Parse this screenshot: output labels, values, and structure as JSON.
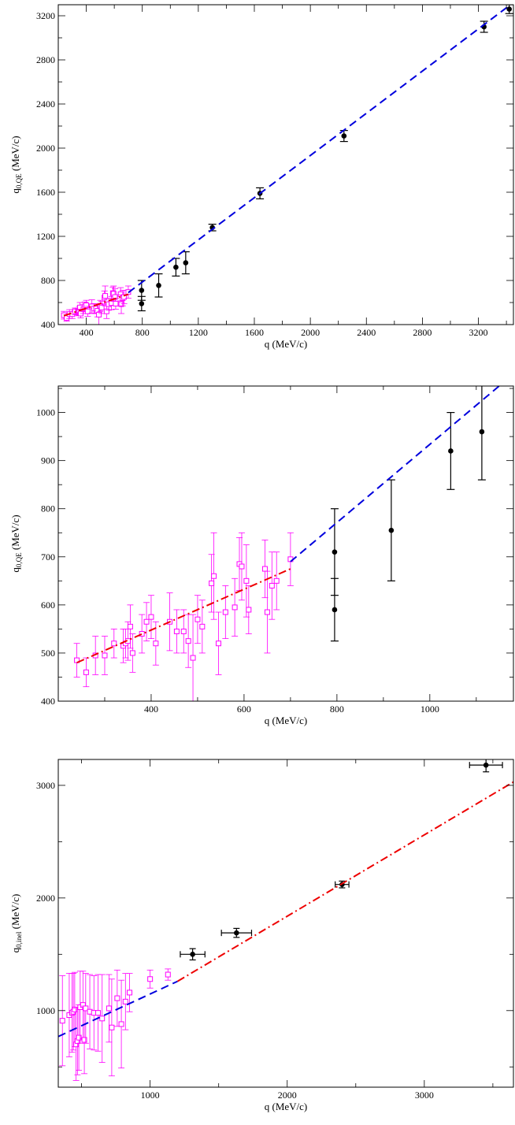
{
  "chart_data": [
    {
      "type": "scatter",
      "xlabel": "q (MeV/c)",
      "ylabel_main": "q",
      "ylabel_sub": "0,QE",
      "ylabel_unit": " (MeV/c)",
      "xlim": [
        200,
        3450
      ],
      "ylim": [
        400,
        3300
      ],
      "xticks": [
        400,
        800,
        1200,
        1600,
        2000,
        2400,
        2800,
        3200
      ],
      "yticks": [
        400,
        800,
        1200,
        1600,
        2000,
        2400,
        2800,
        3200
      ],
      "grid": false,
      "colors": {
        "black": "#000000",
        "magenta": "#ff00ff",
        "blue": "#0000dd",
        "red": "#ee0000"
      },
      "series": [
        {
          "style": "black-points",
          "points": [
            [
              795,
              710,
              90
            ],
            [
              795,
              590,
              65
            ],
            [
              917,
              755,
              105
            ],
            [
              1040,
              920,
              80
            ],
            [
              1110,
              960,
              100
            ],
            [
              1300,
              1280,
              30
            ],
            [
              1640,
              1590,
              50
            ],
            [
              2240,
              2110,
              50
            ],
            [
              3240,
              3100,
              50
            ],
            [
              3420,
              3260,
              40
            ]
          ]
        },
        {
          "style": "magenta-squares",
          "points": [
            [
              240,
              485,
              35
            ],
            [
              260,
              460,
              30
            ],
            [
              280,
              495,
              40
            ],
            [
              300,
              495,
              40
            ],
            [
              320,
              520,
              30
            ],
            [
              340,
              515,
              35
            ],
            [
              345,
              520,
              30
            ],
            [
              350,
              525,
              40
            ],
            [
              355,
              555,
              45
            ],
            [
              360,
              500,
              40
            ],
            [
              380,
              540,
              40
            ],
            [
              390,
              565,
              40
            ],
            [
              400,
              575,
              45
            ],
            [
              410,
              520,
              45
            ],
            [
              440,
              565,
              60
            ],
            [
              455,
              545,
              45
            ],
            [
              470,
              545,
              45
            ],
            [
              480,
              525,
              55
            ],
            [
              490,
              490,
              90
            ],
            [
              500,
              570,
              50
            ],
            [
              510,
              555,
              55
            ],
            [
              530,
              645,
              60
            ],
            [
              535,
              660,
              90
            ],
            [
              545,
              520,
              65
            ],
            [
              560,
              585,
              55
            ],
            [
              580,
              595,
              60
            ],
            [
              590,
              685,
              55
            ],
            [
              595,
              680,
              70
            ],
            [
              605,
              650,
              75
            ],
            [
              610,
              590,
              50
            ],
            [
              645,
              675,
              60
            ],
            [
              650,
              585,
              85
            ],
            [
              660,
              640,
              70
            ],
            [
              670,
              650,
              60
            ],
            [
              700,
              695,
              55
            ]
          ]
        },
        {
          "style": "blue-dashed",
          "line": [
            [
              700,
              690
            ],
            [
              3450,
              3320
            ]
          ]
        },
        {
          "style": "red-dashdot",
          "line": [
            [
              240,
              480
            ],
            [
              700,
              675
            ]
          ]
        }
      ]
    },
    {
      "type": "scatter",
      "xlabel": "q (MeV/c)",
      "ylabel_main": "q",
      "ylabel_sub": "0,QE",
      "ylabel_unit": " (MeV/c)",
      "xlim": [
        200,
        1180
      ],
      "ylim": [
        400,
        1055
      ],
      "xticks": [
        400,
        600,
        800,
        1000
      ],
      "yticks": [
        400,
        500,
        600,
        700,
        800,
        900,
        1000
      ],
      "grid": false,
      "series": [
        {
          "style": "black-points",
          "points": [
            [
              795,
              710,
              90
            ],
            [
              795,
              590,
              65
            ],
            [
              917,
              755,
              105
            ],
            [
              1045,
              920,
              80
            ],
            [
              1112,
              960,
              100
            ]
          ]
        },
        {
          "style": "magenta-squares",
          "points": [
            [
              240,
              485,
              35
            ],
            [
              260,
              460,
              30
            ],
            [
              280,
              495,
              40
            ],
            [
              300,
              495,
              40
            ],
            [
              320,
              520,
              30
            ],
            [
              340,
              515,
              35
            ],
            [
              345,
              520,
              30
            ],
            [
              350,
              525,
              40
            ],
            [
              355,
              555,
              45
            ],
            [
              360,
              500,
              40
            ],
            [
              380,
              540,
              40
            ],
            [
              390,
              565,
              40
            ],
            [
              400,
              575,
              45
            ],
            [
              410,
              520,
              45
            ],
            [
              440,
              565,
              60
            ],
            [
              455,
              545,
              45
            ],
            [
              470,
              545,
              45
            ],
            [
              480,
              525,
              55
            ],
            [
              490,
              490,
              90
            ],
            [
              500,
              570,
              50
            ],
            [
              510,
              555,
              55
            ],
            [
              530,
              645,
              60
            ],
            [
              535,
              660,
              90
            ],
            [
              545,
              520,
              65
            ],
            [
              560,
              585,
              55
            ],
            [
              580,
              595,
              60
            ],
            [
              590,
              685,
              55
            ],
            [
              595,
              680,
              70
            ],
            [
              605,
              650,
              75
            ],
            [
              610,
              590,
              50
            ],
            [
              645,
              675,
              60
            ],
            [
              650,
              585,
              85
            ],
            [
              660,
              640,
              70
            ],
            [
              670,
              650,
              60
            ],
            [
              700,
              695,
              55
            ]
          ]
        },
        {
          "style": "blue-dashed",
          "line": [
            [
              700,
              690
            ],
            [
              1180,
              1080
            ]
          ]
        },
        {
          "style": "red-dashdot",
          "line": [
            [
              240,
              480
            ],
            [
              700,
              675
            ]
          ]
        }
      ]
    },
    {
      "type": "scatter",
      "xlabel": "q (MeV/c)",
      "ylabel_main": "q",
      "ylabel_sub": "0,inel",
      "ylabel_unit": " (MeV/c)",
      "xlim": [
        330,
        3650
      ],
      "ylim": [
        320,
        3230
      ],
      "xticks": [
        1000,
        2000,
        3000
      ],
      "yticks": [
        1000,
        2000,
        3000
      ],
      "grid": false,
      "series": [
        {
          "style": "black-points-xerr",
          "points": [
            [
              1310,
              1500,
              90,
              50
            ],
            [
              1630,
              1690,
              110,
              40
            ],
            [
              2400,
              2120,
              50,
              30
            ],
            [
              3450,
              3180,
              120,
              60
            ]
          ]
        },
        {
          "style": "magenta-squares",
          "points": [
            [
              360,
              910,
              400
            ],
            [
              410,
              960,
              370
            ],
            [
              430,
              980,
              350
            ],
            [
              440,
              990,
              340
            ],
            [
              450,
              1010,
              330
            ],
            [
              460,
              700,
              320
            ],
            [
              470,
              730,
              300
            ],
            [
              480,
              760,
              290
            ],
            [
              490,
              1030,
              320
            ],
            [
              510,
              1050,
              300
            ],
            [
              520,
              740,
              300
            ],
            [
              530,
              1020,
              310
            ],
            [
              560,
              990,
              330
            ],
            [
              590,
              980,
              330
            ],
            [
              620,
              980,
              340
            ],
            [
              650,
              930,
              390
            ],
            [
              700,
              1020,
              300
            ],
            [
              720,
              850,
              430
            ],
            [
              760,
              1110,
              250
            ],
            [
              790,
              880,
              390
            ],
            [
              820,
              1080,
              250
            ],
            [
              850,
              1160,
              170
            ],
            [
              1000,
              1280,
              80
            ],
            [
              1130,
              1320,
              50
            ]
          ]
        },
        {
          "style": "blue-dashed",
          "line": [
            [
              330,
              770
            ],
            [
              1200,
              1260
            ]
          ]
        },
        {
          "style": "red-dashdot",
          "line": [
            [
              1200,
              1260
            ],
            [
              3650,
              3030
            ]
          ]
        }
      ]
    }
  ]
}
